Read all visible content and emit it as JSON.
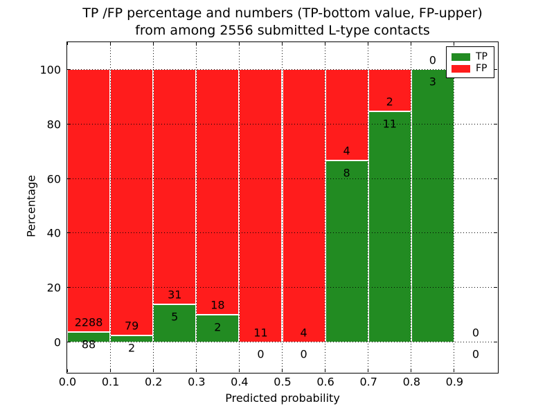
{
  "title": {
    "line1": "TP /FP percentage and numbers (TP-bottom value, FP-upper)",
    "line2": "from among 2556 submitted L-type contacts"
  },
  "axes": {
    "xlabel": "Predicted probability",
    "ylabel": "Percentage"
  },
  "legend": {
    "items": [
      {
        "label": "TP",
        "color": "#228b22"
      },
      {
        "label": "FP",
        "color": "#ff1c1c"
      }
    ]
  },
  "colors": {
    "tp": "#228b22",
    "fp": "#ff1c1c",
    "grid": "#000000",
    "bar_edge": "#ffffff",
    "spine": "#000000",
    "background": "#ffffff"
  },
  "chart_data": {
    "type": "bar",
    "stacked": true,
    "title": "TP /FP percentage and numbers (TP-bottom value, FP-upper) from among 2556 submitted L-type contacts",
    "xlabel": "Predicted probability",
    "ylabel": "Percentage",
    "xlim": [
      0.0,
      1.0
    ],
    "ylim": [
      -11,
      110
    ],
    "xticks": [
      "0.0",
      "0.1",
      "0.2",
      "0.3",
      "0.4",
      "0.5",
      "0.6",
      "0.7",
      "0.8",
      "0.9"
    ],
    "yticks": [
      "0",
      "20",
      "40",
      "60",
      "80",
      "100"
    ],
    "grid": true,
    "legend_position": "upper right",
    "total_contacts": 2556,
    "series": [
      {
        "name": "TP",
        "color": "#228b22"
      },
      {
        "name": "FP",
        "color": "#ff1c1c"
      }
    ],
    "bins": [
      {
        "x0": 0.0,
        "x1": 0.1,
        "tp": 88,
        "fp": 2288,
        "tp_pct": 3.704,
        "fp_pct": 96.296
      },
      {
        "x0": 0.1,
        "x1": 0.2,
        "tp": 2,
        "fp": 79,
        "tp_pct": 2.469,
        "fp_pct": 97.531
      },
      {
        "x0": 0.2,
        "x1": 0.3,
        "tp": 5,
        "fp": 31,
        "tp_pct": 13.889,
        "fp_pct": 86.111
      },
      {
        "x0": 0.3,
        "x1": 0.4,
        "tp": 2,
        "fp": 18,
        "tp_pct": 10.0,
        "fp_pct": 90.0
      },
      {
        "x0": 0.4,
        "x1": 0.5,
        "tp": 0,
        "fp": 11,
        "tp_pct": 0,
        "fp_pct": 100.0
      },
      {
        "x0": 0.5,
        "x1": 0.6,
        "tp": 0,
        "fp": 4,
        "tp_pct": 0,
        "fp_pct": 100.0
      },
      {
        "x0": 0.6,
        "x1": 0.7,
        "tp": 8,
        "fp": 4,
        "tp_pct": 66.667,
        "fp_pct": 33.333
      },
      {
        "x0": 0.7,
        "x1": 0.8,
        "tp": 11,
        "fp": 2,
        "tp_pct": 84.615,
        "fp_pct": 15.385
      },
      {
        "x0": 0.8,
        "x1": 0.9,
        "tp": 3,
        "fp": 0,
        "tp_pct": 100.0,
        "fp_pct": 0
      },
      {
        "x0": 0.9,
        "x1": 1.0,
        "tp": 0,
        "fp": 0,
        "tp_pct": 0,
        "fp_pct": 0
      }
    ]
  }
}
